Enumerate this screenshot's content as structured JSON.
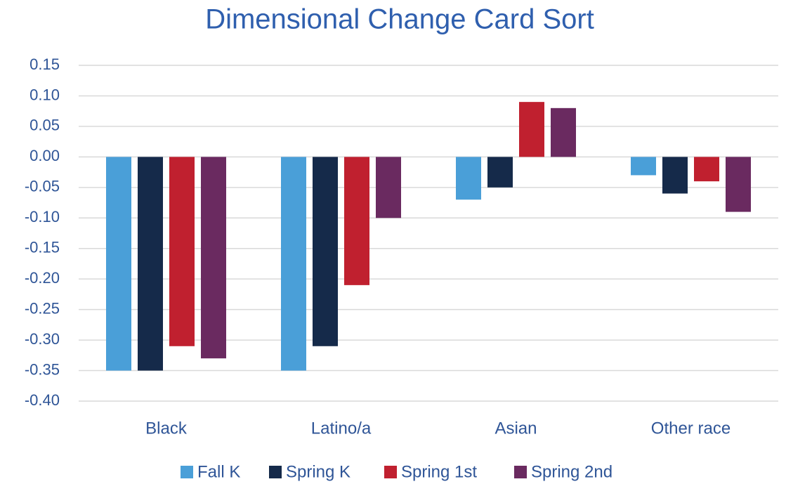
{
  "chart_data": {
    "type": "bar",
    "title": "Dimensional Change Card Sort",
    "categories": [
      "Black",
      "Latino/a",
      "Asian",
      "Other race"
    ],
    "series": [
      {
        "name": "Fall K",
        "color": "#4a9fd8",
        "values": [
          -0.35,
          -0.35,
          -0.07,
          -0.03
        ]
      },
      {
        "name": "Spring K",
        "color": "#152a4a",
        "values": [
          -0.35,
          -0.31,
          -0.05,
          -0.06
        ]
      },
      {
        "name": "Spring 1st",
        "color": "#c0202f",
        "values": [
          -0.31,
          -0.21,
          0.09,
          -0.04
        ]
      },
      {
        "name": "Spring 2nd",
        "color": "#6a2a60",
        "values": [
          -0.33,
          -0.1,
          0.08,
          -0.09
        ]
      }
    ],
    "ylim": [
      -0.4,
      0.15
    ],
    "yticks": [
      0.15,
      {
        "value": 0.1,
        "label": "0.10"
      },
      0.05,
      {
        "value": 0,
        "label": "0.00"
      },
      -0.05,
      {
        "value": -0.1,
        "label": "-0.10"
      },
      -0.15,
      {
        "value": -0.2,
        "label": "-0.20"
      },
      -0.25,
      {
        "value": -0.3,
        "label": "-0.30"
      },
      -0.35,
      {
        "value": -0.4,
        "label": "-0.40"
      }
    ],
    "grid": true,
    "legend": "bottom"
  }
}
